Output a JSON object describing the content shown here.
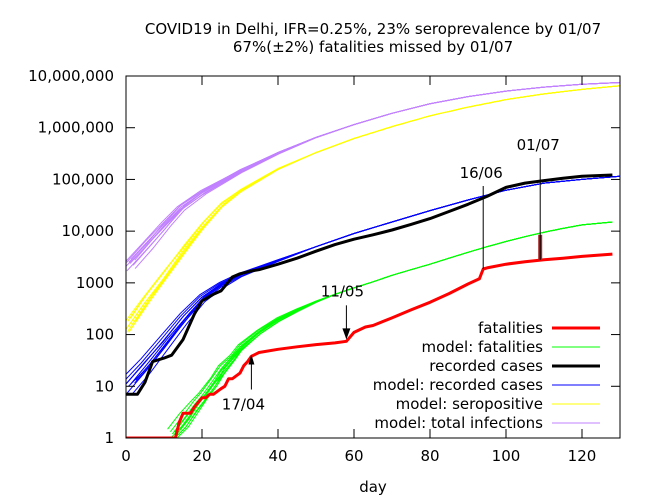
{
  "chart_data": {
    "type": "line",
    "title": "COVID19 in Delhi, IFR=0.25%, 23% seroprevalence by 01/07",
    "subtitle": "67%(±2%) fatalities missed by 01/07",
    "xlabel": "day",
    "ylabel": "",
    "xlim": [
      0,
      130
    ],
    "ylim": [
      1,
      10000000
    ],
    "yscale": "log",
    "grid": false,
    "legend_position": "bottom-right",
    "x_ticks": [
      0,
      20,
      40,
      60,
      80,
      100,
      120
    ],
    "x_tick_labels": [
      "0",
      "20",
      "40",
      "60",
      "80",
      "100",
      "120"
    ],
    "y_ticks": [
      1,
      10,
      100,
      1000,
      10000,
      100000,
      1000000,
      10000000
    ],
    "y_tick_labels": [
      "1",
      "10",
      "100",
      "1000",
      "10,000",
      "100,000",
      "1,000,000",
      "10,000,000"
    ],
    "series": [
      {
        "name": "model: total infections",
        "color": "#c080ff",
        "ensemble": true,
        "x": [
          0,
          5,
          10,
          14,
          20,
          30,
          40,
          50,
          60,
          70,
          80,
          90,
          100,
          110,
          120,
          130
        ],
        "y": [
          2500,
          6000,
          15000,
          30000,
          60000,
          150000,
          330000,
          650000,
          1150000,
          1900000,
          2900000,
          4000000,
          5100000,
          6100000,
          6900000,
          7500000
        ]
      },
      {
        "name": "model: seropositive",
        "color": "#ffff00",
        "ensemble": true,
        "x": [
          0,
          5,
          10,
          15,
          20,
          25,
          30,
          40,
          50,
          60,
          70,
          80,
          90,
          100,
          110,
          120,
          130
        ],
        "y": [
          150,
          500,
          1500,
          4500,
          13000,
          32000,
          60000,
          160000,
          330000,
          620000,
          1050000,
          1700000,
          2500000,
          3500000,
          4500000,
          5500000,
          6500000
        ]
      },
      {
        "name": "model: recorded cases",
        "color": "#0000ff",
        "ensemble": true,
        "x": [
          0,
          5,
          10,
          15,
          20,
          25,
          30,
          40,
          50,
          60,
          70,
          80,
          90,
          100,
          110,
          120,
          130
        ],
        "y": [
          10,
          25,
          70,
          200,
          500,
          900,
          1400,
          2700,
          5000,
          9000,
          15000,
          25000,
          40000,
          62000,
          85000,
          100000,
          115000
        ]
      },
      {
        "name": "recorded cases",
        "color": "#000000",
        "x": [
          0,
          3,
          5,
          7,
          10,
          12,
          15,
          18,
          20,
          23,
          25,
          28,
          30,
          33,
          35,
          40,
          45,
          50,
          55,
          60,
          65,
          70,
          75,
          80,
          85,
          90,
          95,
          100,
          105,
          110,
          115,
          120,
          128
        ],
        "y": [
          7,
          7,
          12,
          30,
          35,
          40,
          80,
          250,
          450,
          600,
          700,
          1300,
          1500,
          1700,
          1800,
          2300,
          3000,
          4100,
          5500,
          7000,
          8500,
          10500,
          13500,
          17500,
          24000,
          33000,
          47000,
          70000,
          85000,
          95000,
          105000,
          115000,
          122000
        ]
      },
      {
        "name": "model: fatalities",
        "color": "#00ff00",
        "ensemble": true,
        "x": [
          12,
          15,
          18,
          20,
          23,
          25,
          28,
          30,
          35,
          40,
          45,
          50,
          55,
          60,
          65,
          70,
          75,
          80,
          85,
          90,
          95,
          100,
          105,
          110,
          115,
          120,
          128
        ],
        "y": [
          1,
          2,
          4,
          6,
          12,
          20,
          35,
          55,
          110,
          190,
          290,
          430,
          600,
          800,
          1050,
          1400,
          1800,
          2300,
          3000,
          3900,
          5000,
          6300,
          7800,
          9500,
          11300,
          13200,
          15000
        ]
      },
      {
        "name": "fatalities",
        "color": "#ff0000",
        "x": [
          0,
          13,
          14,
          15,
          17,
          18,
          20,
          21,
          22,
          23,
          25,
          26,
          27,
          28,
          30,
          31,
          32,
          33,
          35,
          40,
          45,
          50,
          55,
          58,
          60,
          63,
          65,
          70,
          75,
          80,
          85,
          90,
          93,
          94,
          95,
          100,
          105,
          110,
          115,
          120,
          128
        ],
        "y": [
          1,
          1,
          2,
          3,
          3,
          4,
          6,
          6,
          7,
          7,
          9,
          10,
          14,
          14,
          18,
          25,
          30,
          38,
          45,
          52,
          58,
          64,
          69,
          74,
          110,
          140,
          150,
          210,
          300,
          420,
          620,
          950,
          1200,
          1850,
          1950,
          2300,
          2550,
          2800,
          3000,
          3250,
          3600
        ]
      }
    ],
    "annotations": [
      {
        "label": "17/04",
        "x": 33,
        "y": 45,
        "arrow": "up"
      },
      {
        "label": "11/05",
        "x": 58,
        "y": 74,
        "arrow": "down"
      },
      {
        "label": "16/06",
        "x": 94,
        "y": 1850,
        "arrow": "vline"
      },
      {
        "label": "01/07",
        "x": 109,
        "y": 2800,
        "arrow": "vline",
        "gap_to": 8500,
        "gap_color": "#a52a2a"
      }
    ],
    "legend": [
      {
        "label": "fatalities",
        "color": "#ff0000",
        "width": "thick"
      },
      {
        "label": "model: fatalities",
        "color": "#00ff00",
        "width": "thin"
      },
      {
        "label": "recorded cases",
        "color": "#000000",
        "width": "thick"
      },
      {
        "label": "model: recorded cases",
        "color": "#0000ff",
        "width": "thin"
      },
      {
        "label": "model: seropositive",
        "color": "#ffff00",
        "width": "thin"
      },
      {
        "label": "model: total infections",
        "color": "#c080ff",
        "width": "thin"
      }
    ]
  }
}
